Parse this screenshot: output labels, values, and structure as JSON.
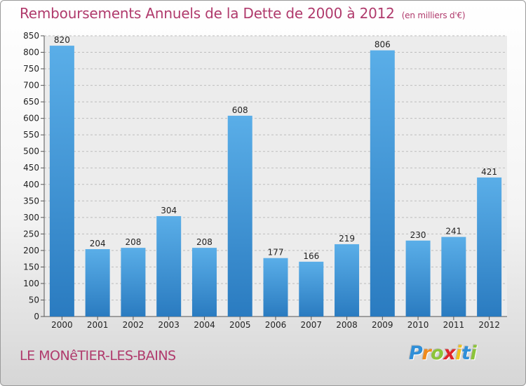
{
  "chart_data": {
    "type": "bar",
    "title": "Remboursements Annuels de la Dette de 2000 à 2012",
    "unit_label": "(en milliers d'€)",
    "categories": [
      "2000",
      "2001",
      "2002",
      "2003",
      "2004",
      "2005",
      "2006",
      "2007",
      "2008",
      "2009",
      "2010",
      "2011",
      "2012"
    ],
    "values": [
      820,
      204,
      208,
      304,
      208,
      608,
      177,
      166,
      219,
      806,
      230,
      241,
      421
    ],
    "ylim": [
      0,
      850
    ],
    "yticks": [
      0,
      50,
      100,
      150,
      200,
      250,
      300,
      350,
      400,
      450,
      500,
      550,
      600,
      650,
      700,
      750,
      800,
      850
    ],
    "grid": true,
    "bar_color": "#3f95d6",
    "xlabel": "",
    "ylabel": ""
  },
  "footer": {
    "commune": "LE MONêTIER-LES-BAINS",
    "logo_letters": [
      {
        "ch": "P",
        "color": "#2f8fd8"
      },
      {
        "ch": "r",
        "color": "#f08a1c"
      },
      {
        "ch": "o",
        "color": "#8cc43a"
      },
      {
        "ch": "x",
        "color": "#e0262a"
      },
      {
        "ch": "i",
        "color": "#f0c21c"
      },
      {
        "ch": "t",
        "color": "#2f8fd8"
      },
      {
        "ch": "i",
        "color": "#8cc43a"
      }
    ]
  }
}
